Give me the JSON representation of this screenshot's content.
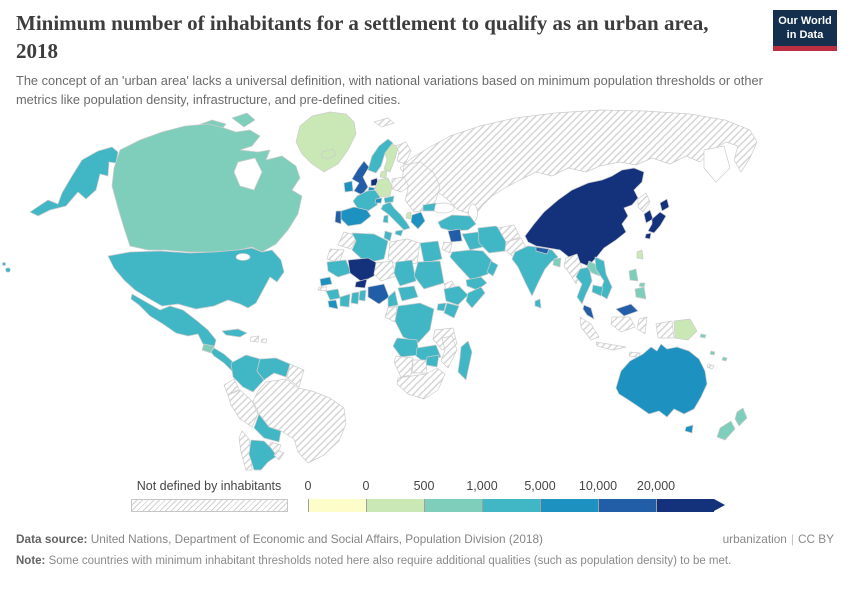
{
  "header": {
    "title": "Minimum number of inhabitants for a settlement to qualify as an urban area, 2018",
    "subtitle": "The concept of an 'urban area' lacks a universal definition, with national variations based on minimum population thresholds or other metrics like population density, infrastructure, and pre-defined cities.",
    "logo": {
      "line1": "Our World",
      "line2": "in Data"
    }
  },
  "footer": {
    "datasource_label": "Data source:",
    "datasource_text": " United Nations, Department of Economic and Social Affairs, Population Division (2018)",
    "tab_label": "urbanization",
    "license_label": "CC BY",
    "note_label": "Note:",
    "note_text": " Some countries with minimum inhabitant thresholds noted here also require additional qualities (such as population density) to be met."
  },
  "chart_data": {
    "type": "choropleth",
    "title": "Minimum number of inhabitants for a settlement to qualify as an urban area",
    "year": "2018",
    "legend_not_defined": "Not defined by inhabitants",
    "not_defined_pattern": "gray-diagonal-hatch",
    "bins": [
      {
        "threshold": "0",
        "color": "#fdfdc9"
      },
      {
        "threshold": "0",
        "color": "#c9e8b6"
      },
      {
        "threshold": "500",
        "color": "#7fcdbb"
      },
      {
        "threshold": "1,000",
        "color": "#41b6c4"
      },
      {
        "threshold": "5,000",
        "color": "#1d91c0"
      },
      {
        "threshold": "10,000",
        "color": "#225ea8"
      },
      {
        "threshold": "20,000",
        "color": "#14317c"
      }
    ],
    "regions": {
      "hawaii": "#41b6c4",
      "alaska": "#41b6c4",
      "canada": "#7fcdbb",
      "arctic-islands": "#7fcdbb",
      "greenland": "#c9e8b6",
      "iceland": "#c9e8b6",
      "united-states": "#41b6c4",
      "mexico": "#41b6c4",
      "cuba": "#41b6c4",
      "hispaniola": "not_defined",
      "puerto-rico": "not_defined",
      "guatemala": "#7fcdbb",
      "central-america": "#41b6c4",
      "colombia": "#41b6c4",
      "venezuela": "#41b6c4",
      "guyanas": "not_defined",
      "ecuador": "not_defined",
      "peru": "not_defined",
      "brazil": "not_defined",
      "bolivia": "#41b6c4",
      "paraguay": "not_defined",
      "chile": "not_defined",
      "argentina": "#41b6c4",
      "uruguay": "not_defined",
      "norway": "#41b6c4",
      "sweden": "#c9e8b6",
      "finland": "not_defined",
      "svalbard": "not_defined",
      "united-kingdom": "#225ea8",
      "ireland": "#1d91c0",
      "denmark": "#c9e8b6",
      "netherlands": "#14317c",
      "belgium": "#1d91c0",
      "germany": "#c9e8b6",
      "france": "#41b6c4",
      "spain": "#1d91c0",
      "portugal": "#225ea8",
      "switzerland": "#1d91c0",
      "austria": "#41b6c4",
      "italy": "#41b6c4",
      "poland": "not_defined",
      "eastern-europe": "not_defined",
      "bulgaria": "#41b6c4",
      "albania": "#c9e8b6",
      "greece": "#1d91c0",
      "russia-central-asia": "not_defined",
      "turkey": "#41b6c4",
      "syria": "#225ea8",
      "jordan-israel": "not_defined",
      "iraq": "#41b6c4",
      "iran": "#41b6c4",
      "saudi-arabia": "#41b6c4",
      "yemen": "#41b6c4",
      "oman": "#41b6c4",
      "afghanistan": "not_defined",
      "pakistan": "not_defined",
      "india": "#41b6c4",
      "nepal": "#225ea8",
      "bangladesh": "#7fcdbb",
      "sri-lanka": "#41b6c4",
      "china": "#14317c",
      "taiwan": "#c9e8b6",
      "north-korea": "not_defined",
      "south-korea": "#14317c",
      "japan": "#14317c",
      "myanmar": "not_defined",
      "thailand": "#41b6c4",
      "laos": "#7fcdbb",
      "vietnam": "#41b6c4",
      "cambodia": "#41b6c4",
      "malaysia": "#225ea8",
      "indonesia": "not_defined",
      "philippines": "#7fcdbb",
      "papua-new-guinea": "#c9e8b6",
      "solomon-islands": "#7fcdbb",
      "vanuatu": "#7fcdbb",
      "fiji": "#7fcdbb",
      "new-caledonia": "not_defined",
      "australia": "#1d91c0",
      "new-zealand": "#7fcdbb",
      "morocco": "not_defined",
      "western-sahara": "not_defined",
      "algeria": "#41b6c4",
      "tunisia": "#41b6c4",
      "libya": "not_defined",
      "egypt": "#41b6c4",
      "mauritania": "#41b6c4",
      "mali": "#14317c",
      "burkina-faso": "#14317c",
      "niger": "not_defined",
      "chad": "#41b6c4",
      "sudan": "#41b6c4",
      "eritrea": "not_defined",
      "senegal": "#1d91c0",
      "gambia": "not_defined",
      "guinea": "#41b6c4",
      "liberia": "#1d91c0",
      "ivory-coast": "#41b6c4",
      "ghana": "#41b6c4",
      "benin-togo": "#41b6c4",
      "nigeria": "#225ea8",
      "cameroon": "#41b6c4",
      "central-african-republic": "#41b6c4",
      "ethiopia": "#41b6c4",
      "somalia": "#41b6c4",
      "uganda": "#41b6c4",
      "kenya": "#41b6c4",
      "gabon-congo": "not_defined",
      "dr-congo": "#41b6c4",
      "tanzania": "not_defined",
      "angola": "#41b6c4",
      "zambia": "#41b6c4",
      "mozambique": "not_defined",
      "zimbabwe": "#41b6c4",
      "botswana": "not_defined",
      "namibia": "not_defined",
      "south-africa": "not_defined",
      "madagascar": "#41b6c4"
    }
  }
}
